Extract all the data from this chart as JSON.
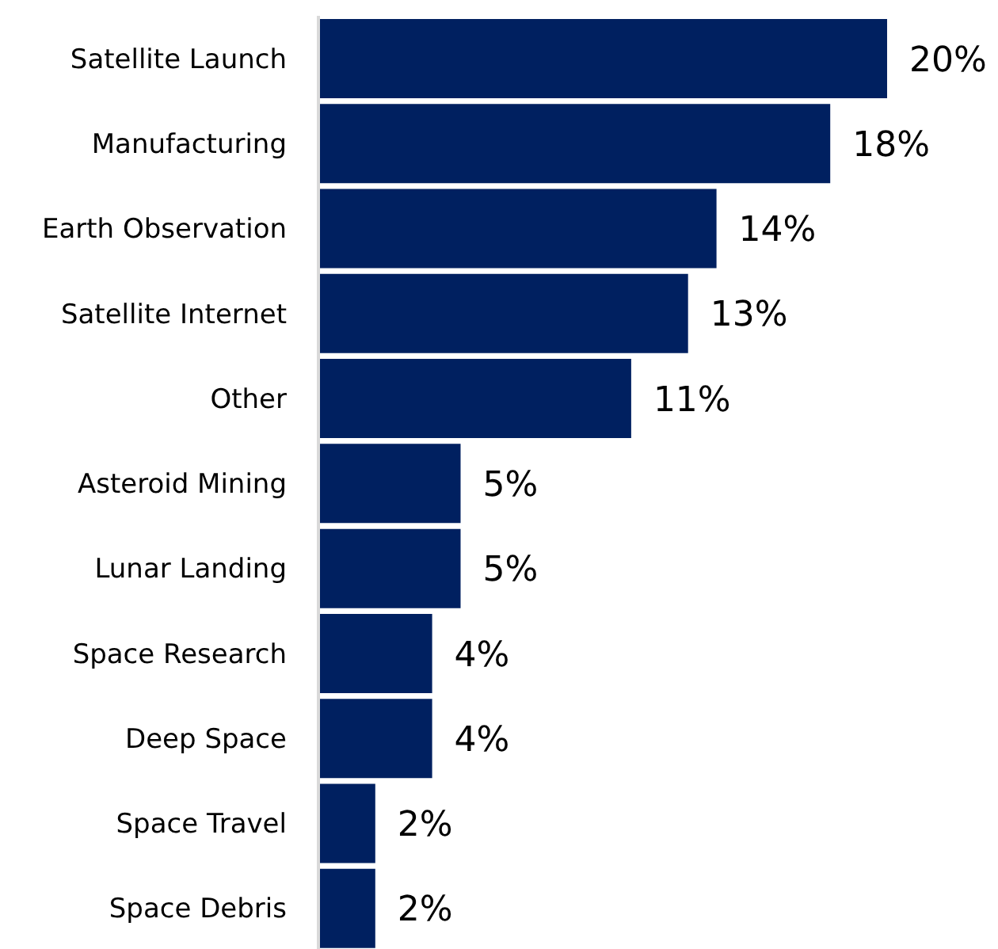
{
  "chart_data": {
    "type": "bar",
    "orientation": "horizontal",
    "categories": [
      "Satellite Launch",
      "Manufacturing",
      "Earth Observation",
      "Satellite Internet",
      "Other",
      "Asteroid Mining",
      "Lunar Landing",
      "Space Research",
      "Deep Space",
      "Space Travel",
      "Space Debris"
    ],
    "values": [
      20,
      18,
      14,
      13,
      11,
      5,
      5,
      4,
      4,
      2,
      2
    ],
    "value_labels": [
      "20%",
      "18%",
      "14%",
      "13%",
      "11%",
      "5%",
      "5%",
      "4%",
      "4%",
      "2%",
      "2%"
    ],
    "color": "#002060",
    "tick_labels": "y"
  }
}
